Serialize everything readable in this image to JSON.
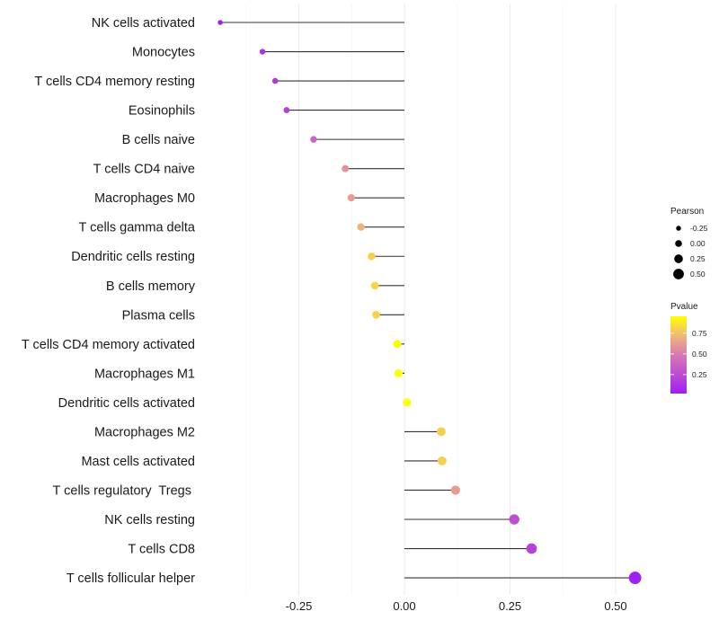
{
  "chart_data": {
    "type": "lollipop",
    "title": "",
    "xlabel": "",
    "ylabel": "",
    "xlim": [
      -0.48,
      0.605
    ],
    "x_ticks": [
      -0.25,
      0.0,
      0.25,
      0.5
    ],
    "x_tick_labels": [
      "-0.25",
      "0.00",
      "0.25",
      "0.50"
    ],
    "grid": true,
    "categories": [
      "NK cells activated",
      "Monocytes",
      "T cells CD4 memory resting",
      "Eosinophils",
      "B cells naive",
      "T cells CD4 naive",
      "Macrophages M0",
      "T cells gamma delta",
      "Dendritic cells resting",
      "B cells memory",
      "Plasma cells",
      "T cells CD4 memory activated",
      "Macrophages M1",
      "Dendritic cells activated",
      "Macrophages M2",
      "Mast cells activated",
      "T cells regulatory  Tregs ",
      "NK cells resting",
      "T cells CD8",
      "T cells follicular helper"
    ],
    "series": [
      {
        "name": "Pearson",
        "values": [
          -0.436,
          -0.336,
          -0.306,
          -0.279,
          -0.215,
          -0.14,
          -0.126,
          -0.103,
          -0.078,
          -0.07,
          -0.067,
          -0.017,
          -0.014,
          0.006,
          0.087,
          0.089,
          0.121,
          0.26,
          0.301,
          0.546
        ]
      },
      {
        "name": "Pvalue",
        "values": [
          0.02,
          0.12,
          0.15,
          0.2,
          0.38,
          0.58,
          0.62,
          0.7,
          0.8,
          0.82,
          0.81,
          0.95,
          0.96,
          0.98,
          0.8,
          0.8,
          0.62,
          0.27,
          0.2,
          0.01
        ]
      }
    ],
    "legend": {
      "placement": "right",
      "size": {
        "title": "Pearson",
        "breaks": [
          -0.25,
          0.0,
          0.25,
          0.5
        ],
        "labels": [
          "-0.25",
          "0.00",
          "0.25",
          "0.50"
        ]
      },
      "color": {
        "title": "Pvalue",
        "range": [
          0.02,
          0.955
        ],
        "breaks": [
          0.25,
          0.5,
          0.75
        ],
        "labels": [
          "0.25",
          "0.50",
          "0.75"
        ],
        "low_color": "#a020f0",
        "high_color": "#ffff00",
        "mid_colors": [
          "#d878b4",
          "#f0b878"
        ]
      }
    }
  }
}
